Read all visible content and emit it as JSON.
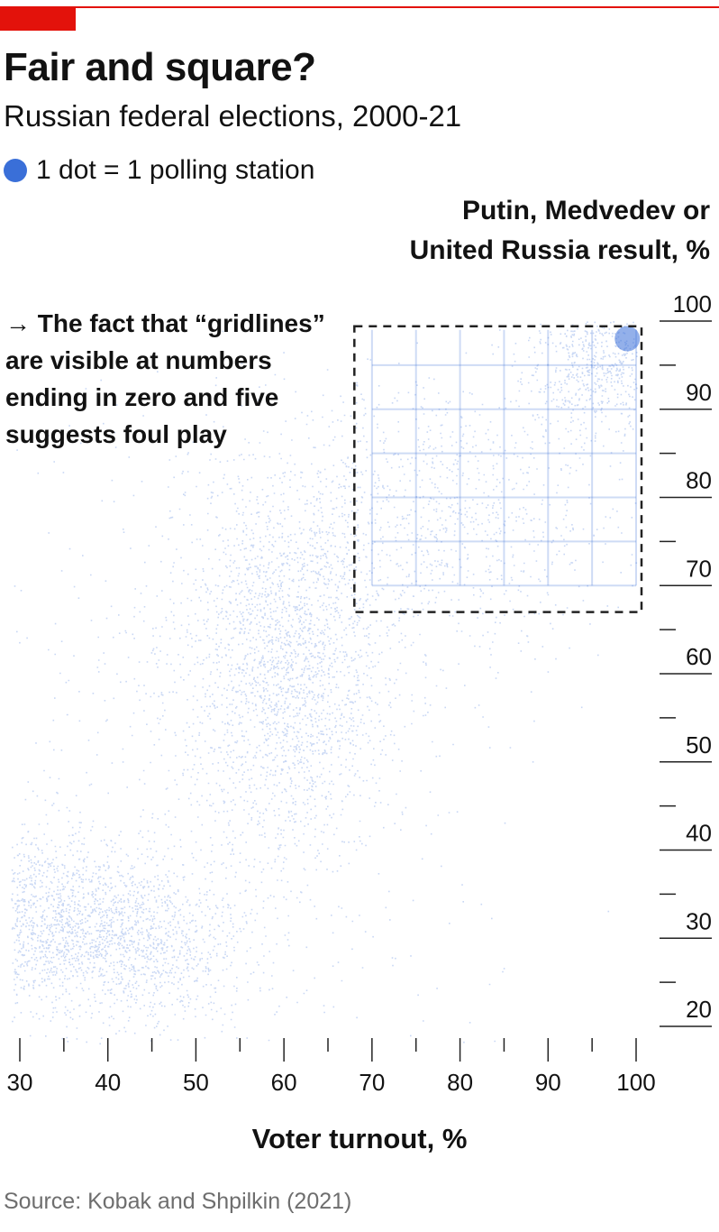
{
  "header": {
    "title": "Fair and square?",
    "subtitle": "Russian federal elections, 2000-21"
  },
  "legend": {
    "label": "1 dot = 1 polling station",
    "color": "#3a6fd8"
  },
  "annotation": {
    "text": "→ The fact that “gridlines” are visible at numbers ending in zero and five suggests foul play"
  },
  "source": "Source: Kobak and Shpilkin (2021)",
  "colors": {
    "accent": "#e3120b",
    "dots": "#3a6fd8",
    "text": "#121212"
  },
  "chart_data": {
    "type": "scatter",
    "title": "Fair and square?",
    "subtitle": "Russian federal elections, 2000-21",
    "xlabel": "Voter turnout, %",
    "ylabel_lines": [
      "Putin, Medvedev or",
      "United Russia result, %"
    ],
    "xlim": [
      30,
      100
    ],
    "ylim": [
      20,
      100
    ],
    "x_ticks": [
      30,
      40,
      50,
      60,
      70,
      80,
      90,
      100
    ],
    "x_minor_ticks": [
      35,
      45,
      55,
      65,
      75,
      85,
      95
    ],
    "y_ticks": [
      20,
      30,
      40,
      50,
      60,
      70,
      80,
      90,
      100
    ],
    "y_minor_ticks": [
      25,
      35,
      45,
      55,
      65,
      75,
      85,
      95
    ],
    "highlight_box": {
      "x": [
        68,
        100
      ],
      "y": [
        67,
        99
      ]
    },
    "density_clusters": [
      {
        "x": 33,
        "y": 32,
        "sx": 7,
        "sy": 5,
        "weight": 0.22
      },
      {
        "x": 45,
        "y": 30,
        "sx": 6,
        "sy": 5,
        "weight": 0.12
      },
      {
        "x": 60,
        "y": 62,
        "sx": 6,
        "sy": 11,
        "weight": 0.32
      },
      {
        "x": 78,
        "y": 78,
        "sx": 10,
        "sy": 8,
        "weight": 0.14
      },
      {
        "x": 96,
        "y": 95,
        "sx": 4,
        "sy": 4,
        "weight": 0.1
      },
      {
        "x": 50,
        "y": 50,
        "sx": 18,
        "sy": 20,
        "weight": 0.1
      }
    ],
    "grid_artifacts": [
      70,
      75,
      80,
      85,
      90,
      95,
      100
    ]
  }
}
